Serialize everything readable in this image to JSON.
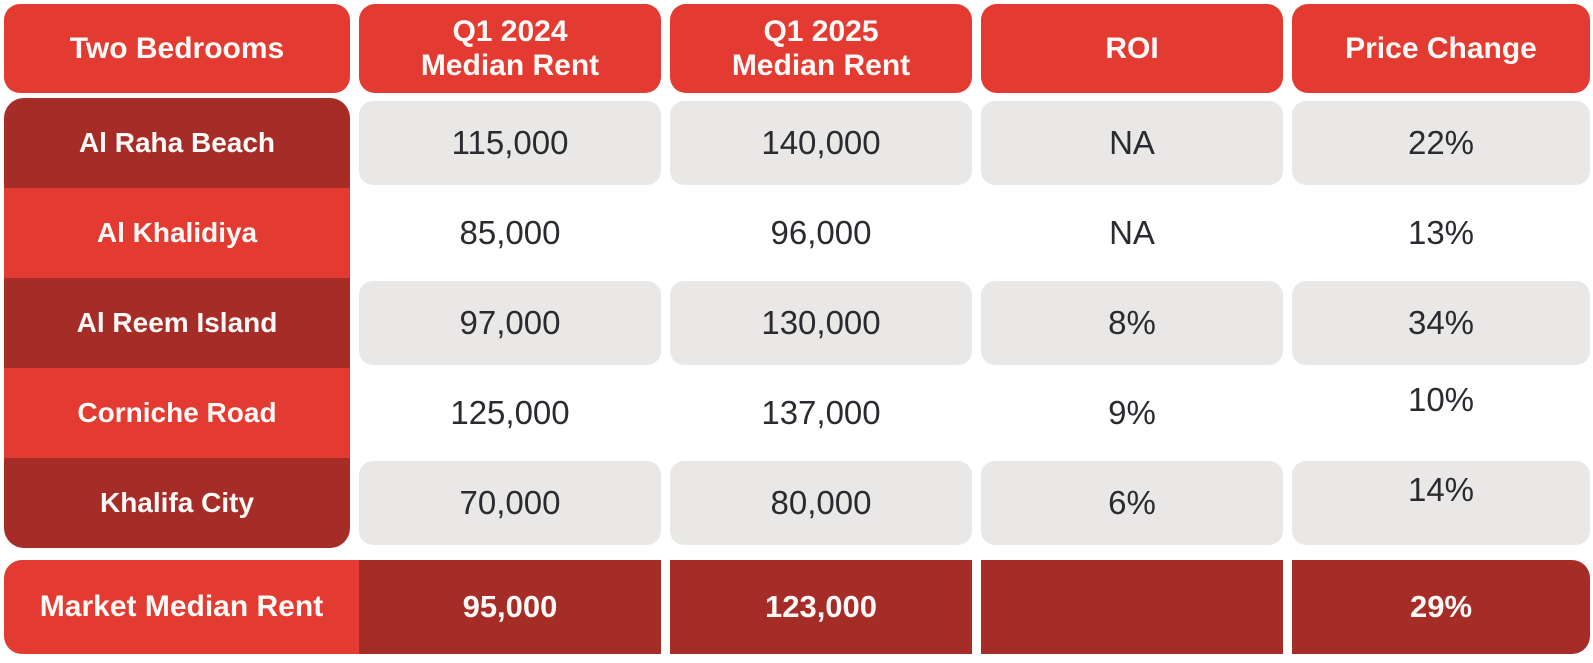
{
  "colors": {
    "bright-red": "#e33b31",
    "dark-red": "#a62d27",
    "cell-gray": "#e9e8e6",
    "text-dark": "#2b2a30",
    "text-light": "#fffaf7"
  },
  "table": {
    "header": {
      "area": "Two Bedrooms",
      "q1_2024_line1": "Q1 2024",
      "q1_2024_line2": "Median Rent",
      "q1_2025_line1": "Q1 2025",
      "q1_2025_line2": "Median Rent",
      "roi": "ROI",
      "price_change": "Price Change"
    },
    "rows": [
      {
        "area": "Al Raha Beach",
        "q1_2024": "115,000",
        "q1_2025": "140,000",
        "roi": "NA",
        "price_change": "22%"
      },
      {
        "area": "Al Khalidiya",
        "q1_2024": "85,000",
        "q1_2025": "96,000",
        "roi": "NA",
        "price_change": "13%"
      },
      {
        "area": "Al Reem Island",
        "q1_2024": "97,000",
        "q1_2025": "130,000",
        "roi": "8%",
        "price_change": "34%"
      },
      {
        "area": "Corniche Road",
        "q1_2024": "125,000",
        "q1_2025": "137,000",
        "roi": "9%",
        "price_change": "10%"
      },
      {
        "area": "Khalifa City",
        "q1_2024": "70,000",
        "q1_2025": "80,000",
        "roi": "6%",
        "price_change": "14%"
      }
    ],
    "footer": {
      "label": "Market Median Rent",
      "q1_2024": "95,000",
      "q1_2025": "123,000",
      "roi": "",
      "price_change": "29%"
    }
  },
  "chart_data": {
    "type": "table",
    "title": "Two Bedrooms",
    "columns": [
      "Two Bedrooms",
      "Q1 2024 Median Rent",
      "Q1 2025 Median Rent",
      "ROI",
      "Price Change"
    ],
    "rows": [
      [
        "Al Raha Beach",
        "115,000",
        "140,000",
        "NA",
        "22%"
      ],
      [
        "Al Khalidiya",
        "85,000",
        "96,000",
        "NA",
        "13%"
      ],
      [
        "Al Reem Island",
        "97,000",
        "130,000",
        "8%",
        "34%"
      ],
      [
        "Corniche Road",
        "125,000",
        "137,000",
        "9%",
        "10%"
      ],
      [
        "Khalifa City",
        "70,000",
        "80,000",
        "6%",
        "14%"
      ],
      [
        "Market Median Rent",
        "95,000",
        "123,000",
        "",
        "29%"
      ]
    ],
    "layout_hints": {
      "header_fill": "#e33b31",
      "row_label_fills_alternating": [
        "#a62d27",
        "#e33b31"
      ],
      "body_row_fills_alternating": [
        "#e9e8e6",
        "#ffffff"
      ],
      "footer_fill": "#a62d27",
      "grid": "off"
    }
  }
}
